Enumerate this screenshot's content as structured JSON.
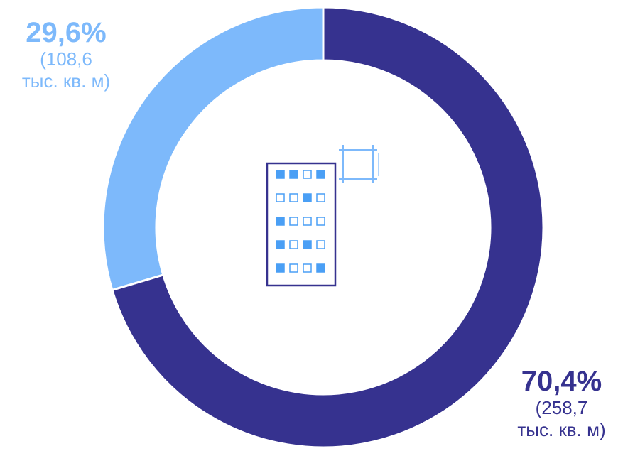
{
  "chart_data": {
    "type": "pie",
    "variant": "donut",
    "title": "",
    "slices": [
      {
        "label_pct": "70,4%",
        "label_value_line1": "(258,7",
        "label_value_line2": "тыс. кв. м)",
        "value": 70.4,
        "abs_value": 258.7,
        "color": "#36328f"
      },
      {
        "label_pct": "29,6%",
        "label_value_line1": "(108,6",
        "label_value_line2": "тыс. кв. м)",
        "value": 29.6,
        "abs_value": 108.6,
        "color": "#7db9fb"
      }
    ],
    "start_position": "top",
    "direction": "clockwise",
    "legend": "none",
    "center_icon": "apartment-building-icon"
  },
  "colors": {
    "dark": "#36328f",
    "light": "#7db9fb",
    "background": "#ffffff"
  }
}
